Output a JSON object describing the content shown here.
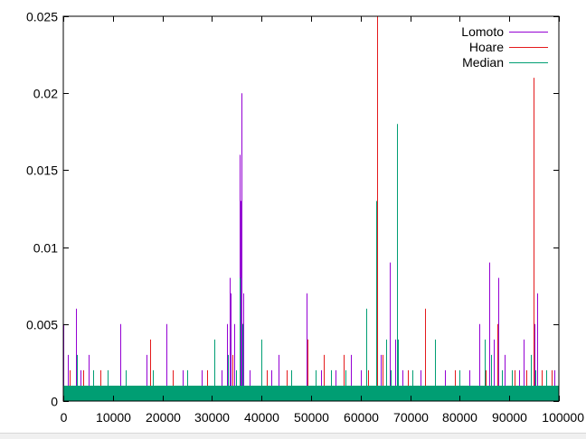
{
  "chart_data": {
    "type": "line",
    "title": "",
    "xlabel": "",
    "ylabel": "",
    "xlim": [
      0,
      100000
    ],
    "ylim": [
      0,
      0.025
    ],
    "grid": false,
    "legend_position": "top-right",
    "x_ticks": [
      0,
      10000,
      20000,
      30000,
      40000,
      50000,
      60000,
      70000,
      80000,
      90000,
      100000
    ],
    "x_tick_labels": [
      "0",
      "10000",
      "20000",
      "30000",
      "40000",
      "50000",
      "60000",
      "70000",
      "80000",
      "90000",
      "100000"
    ],
    "y_ticks": [
      0,
      0.005,
      0.01,
      0.015,
      0.02,
      0.025
    ],
    "y_tick_labels": [
      "0",
      "0.005",
      "0.01",
      "0.015",
      "0.02",
      "0.025"
    ],
    "baseline_band": [
      0,
      0.001
    ],
    "series": [
      {
        "name": "Lomoto",
        "color": "#9400d3",
        "spikes": [
          [
            0,
            0.005
          ],
          [
            1000,
            0.003
          ],
          [
            2600,
            0.006
          ],
          [
            3500,
            0.002
          ],
          [
            5200,
            0.003
          ],
          [
            11500,
            0.005
          ],
          [
            16700,
            0.003
          ],
          [
            20800,
            0.005
          ],
          [
            24000,
            0.002
          ],
          [
            28000,
            0.002
          ],
          [
            32000,
            0.002
          ],
          [
            33000,
            0.005
          ],
          [
            33500,
            0.008
          ],
          [
            33800,
            0.007
          ],
          [
            34500,
            0.005
          ],
          [
            35500,
            0.016
          ],
          [
            35800,
            0.013
          ],
          [
            36000,
            0.02
          ],
          [
            36300,
            0.007
          ],
          [
            37500,
            0.002
          ],
          [
            42000,
            0.002
          ],
          [
            43500,
            0.003
          ],
          [
            49000,
            0.007
          ],
          [
            49300,
            0.004
          ],
          [
            52000,
            0.002
          ],
          [
            55000,
            0.002
          ],
          [
            58000,
            0.003
          ],
          [
            60000,
            0.002
          ],
          [
            64000,
            0.003
          ],
          [
            65800,
            0.009
          ],
          [
            67000,
            0.004
          ],
          [
            68500,
            0.002
          ],
          [
            72000,
            0.002
          ],
          [
            77000,
            0.002
          ],
          [
            82000,
            0.002
          ],
          [
            84000,
            0.005
          ],
          [
            86000,
            0.009
          ],
          [
            86800,
            0.004
          ],
          [
            87800,
            0.008
          ],
          [
            89000,
            0.003
          ],
          [
            92000,
            0.002
          ],
          [
            92800,
            0.004
          ],
          [
            95000,
            0.005
          ],
          [
            95700,
            0.007
          ],
          [
            99000,
            0.002
          ]
        ]
      },
      {
        "name": "Hoare",
        "color": "#e41a1c",
        "spikes": [
          [
            1200,
            0.002
          ],
          [
            4000,
            0.002
          ],
          [
            7500,
            0.002
          ],
          [
            17500,
            0.004
          ],
          [
            22000,
            0.002
          ],
          [
            29000,
            0.002
          ],
          [
            34200,
            0.003
          ],
          [
            36200,
            0.005
          ],
          [
            41000,
            0.002
          ],
          [
            45000,
            0.002
          ],
          [
            49200,
            0.004
          ],
          [
            52500,
            0.003
          ],
          [
            56500,
            0.003
          ],
          [
            61500,
            0.002
          ],
          [
            63300,
            0.025
          ],
          [
            64500,
            0.003
          ],
          [
            69500,
            0.002
          ],
          [
            73000,
            0.006
          ],
          [
            79000,
            0.002
          ],
          [
            85300,
            0.002
          ],
          [
            87500,
            0.005
          ],
          [
            91000,
            0.002
          ],
          [
            93500,
            0.002
          ],
          [
            94800,
            0.021
          ],
          [
            96500,
            0.002
          ],
          [
            98500,
            0.002
          ]
        ]
      },
      {
        "name": "Median",
        "color": "#009e73",
        "spikes": [
          [
            2800,
            0.003
          ],
          [
            6000,
            0.002
          ],
          [
            9000,
            0.002
          ],
          [
            12500,
            0.002
          ],
          [
            18000,
            0.002
          ],
          [
            25000,
            0.002
          ],
          [
            30500,
            0.004
          ],
          [
            33200,
            0.003
          ],
          [
            34800,
            0.002
          ],
          [
            35600,
            0.008
          ],
          [
            36100,
            0.005
          ],
          [
            40000,
            0.004
          ],
          [
            46000,
            0.002
          ],
          [
            51000,
            0.002
          ],
          [
            54000,
            0.002
          ],
          [
            57000,
            0.002
          ],
          [
            61200,
            0.006
          ],
          [
            63200,
            0.013
          ],
          [
            65200,
            0.004
          ],
          [
            66000,
            0.002
          ],
          [
            67300,
            0.018
          ],
          [
            67500,
            0.004
          ],
          [
            70500,
            0.002
          ],
          [
            75000,
            0.004
          ],
          [
            80000,
            0.002
          ],
          [
            85000,
            0.004
          ],
          [
            86400,
            0.003
          ],
          [
            88500,
            0.002
          ],
          [
            90500,
            0.002
          ],
          [
            94300,
            0.003
          ],
          [
            95300,
            0.002
          ],
          [
            97500,
            0.002
          ]
        ]
      }
    ]
  }
}
